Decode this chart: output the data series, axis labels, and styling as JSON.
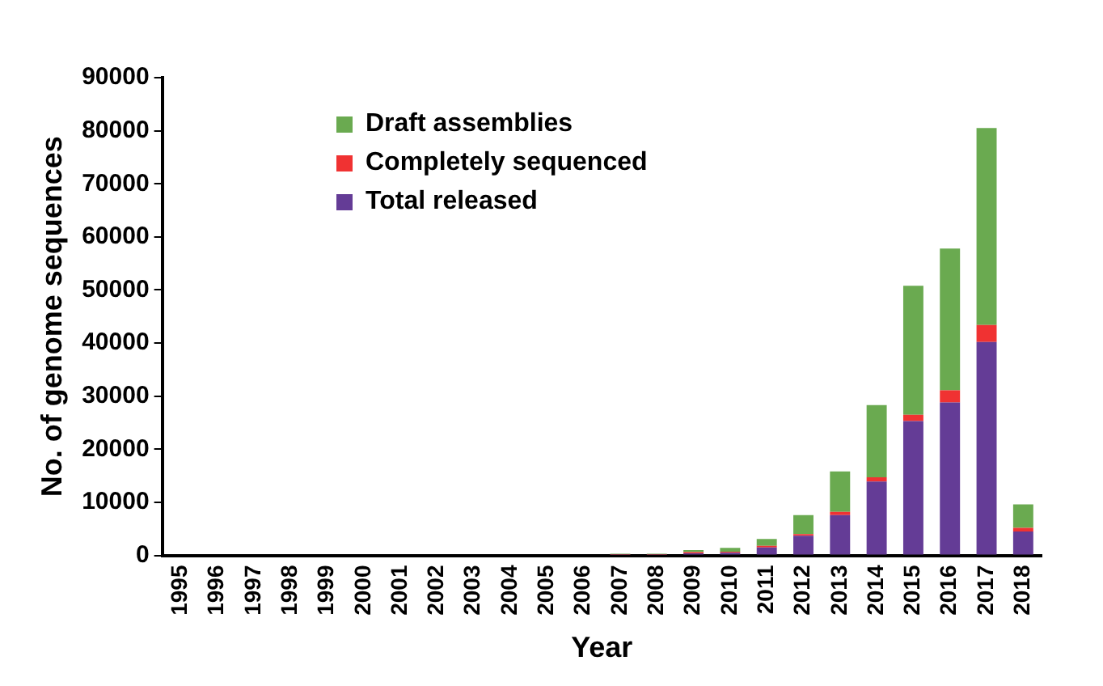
{
  "chart_data": {
    "type": "bar",
    "stacked": true,
    "xlabel": "Year",
    "ylabel": "No. of genome sequences",
    "categories": [
      "1995",
      "1996",
      "1997",
      "1998",
      "1999",
      "2000",
      "2001",
      "2002",
      "2003",
      "2004",
      "2005",
      "2006",
      "2007",
      "2008",
      "2009",
      "2010",
      "2011",
      "2012",
      "2013",
      "2014",
      "2015",
      "2016",
      "2017",
      "2018"
    ],
    "series": [
      {
        "name": "Total released",
        "color": "#643c96",
        "values": [
          0,
          0,
          0,
          0,
          0,
          0,
          0,
          0,
          0,
          0,
          0,
          0,
          100,
          100,
          400,
          500,
          1500,
          3700,
          7600,
          13900,
          25300,
          28800,
          40200,
          4500
        ]
      },
      {
        "name": "Completely sequenced",
        "color": "#f03232",
        "values": [
          0,
          0,
          0,
          0,
          0,
          0,
          0,
          0,
          0,
          0,
          0,
          0,
          100,
          100,
          200,
          200,
          300,
          300,
          600,
          800,
          1200,
          2300,
          3200,
          700
        ]
      },
      {
        "name": "Draft assemblies",
        "color": "#6aaa50",
        "values": [
          0,
          0,
          0,
          0,
          0,
          0,
          0,
          0,
          0,
          0,
          0,
          0,
          100,
          100,
          400,
          700,
          1300,
          3600,
          7600,
          13600,
          24300,
          26700,
          37100,
          4400
        ]
      }
    ],
    "ylim": [
      0,
      90000
    ],
    "yticks": [
      0,
      10000,
      20000,
      30000,
      40000,
      50000,
      60000,
      70000,
      80000,
      90000
    ],
    "grid": false,
    "legend": "top left"
  }
}
